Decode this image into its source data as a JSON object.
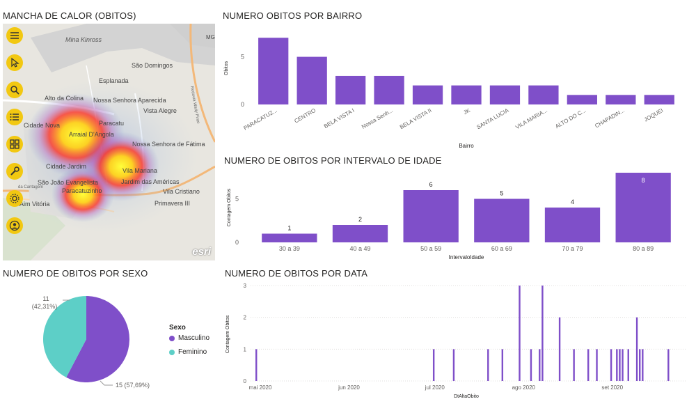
{
  "map_panel": {
    "title": "MANCHA DE CALOR (OBITOS)",
    "attribution": "esri",
    "places": [
      "Mina Kinross",
      "São Domingos",
      "Esplanada",
      "Alto da Colina",
      "Nossa Senhora Aparecida",
      "Vista Alegre",
      "Cidade Nova",
      "Paracatu",
      "Arraial D'Angola",
      "Nossa Senhora de Fátima",
      "Cidade Jardim",
      "Vila Mariana",
      "Jardim das Américas",
      "São João Evangelista",
      "Paracatuzinho",
      "Vila Cristiano",
      "Primavera III",
      "Aim Vitória",
      "MG"
    ],
    "road_labels": [
      "Rodovia Wady Pirao",
      "da Cantagem"
    ],
    "tools": [
      {
        "name": "menu-icon"
      },
      {
        "name": "pointer-icon"
      },
      {
        "name": "search-icon"
      },
      {
        "name": "list-icon"
      },
      {
        "name": "grid-icon"
      },
      {
        "name": "wrench-icon"
      },
      {
        "name": "gear-icon"
      },
      {
        "name": "user-icon"
      }
    ]
  },
  "bairro_panel": {
    "title": "NUMERO OBITOS POR BAIRRO"
  },
  "idade_panel": {
    "title": "NUMERO DE OBITOS POR INTERVALO DE IDADE"
  },
  "sexo_panel": {
    "title": "NUMERO DE OBITOS POR SEXO"
  },
  "data_panel": {
    "title": "NUMERO DE OBITOS POR DATA"
  },
  "colors": {
    "purple": "#7f4fc9",
    "teal": "#5dcfc7"
  },
  "chart_data": [
    {
      "type": "bar",
      "title": "NUMERO OBITOS POR BAIRRO",
      "categories": [
        "PARACATUZ...",
        "CENTRO",
        "BELA VISTA I",
        "Nossa Senh...",
        "BELA VISTA II",
        "JK",
        "SANTA LUCIA",
        "VILA MARIA...",
        "ALTO DO C...",
        "CHAPADIN...",
        "JOQUEI"
      ],
      "values": [
        7,
        5,
        3,
        3,
        2,
        2,
        2,
        2,
        1,
        1,
        1
      ],
      "xlabel": "Bairro",
      "ylabel": "Obitos",
      "yticks": [
        0,
        5
      ],
      "ylim": [
        0,
        7.6
      ]
    },
    {
      "type": "bar",
      "title": "NUMERO DE OBITOS POR INTERVALO DE IDADE",
      "categories": [
        "30 a 39",
        "40 a 49",
        "50 a 59",
        "60 a 69",
        "70 a 79",
        "80 a 89"
      ],
      "values": [
        1,
        2,
        6,
        5,
        4,
        8
      ],
      "xlabel": "IntervaloIdade",
      "ylabel": "Contagem Obitos",
      "yticks": [
        0,
        5
      ],
      "ylim": [
        0,
        8
      ]
    },
    {
      "type": "pie",
      "title": "NUMERO DE OBITOS POR SEXO",
      "legend_title": "Sexo",
      "slices": [
        {
          "name": "Masculino",
          "value": 15,
          "label": "15 (57,69%)"
        },
        {
          "name": "Feminino",
          "value": 11,
          "label": "11 (42,31%)"
        }
      ]
    },
    {
      "type": "bar",
      "title": "NUMERO DE OBITOS POR DATA",
      "xlabel": "DtAltaObito",
      "ylabel": "Contagem Obitos",
      "yticks": [
        0,
        1,
        2,
        3
      ],
      "ylim": [
        0,
        3
      ],
      "xticks": [
        "mai 2020",
        "jun 2020",
        "jul 2020",
        "ago 2020",
        "set 2020"
      ],
      "x_range": [
        "2020-05-01",
        "2020-09-30"
      ],
      "points": [
        {
          "date": "2020-05-03",
          "value": 1
        },
        {
          "date": "2020-07-04",
          "value": 1
        },
        {
          "date": "2020-07-11",
          "value": 1
        },
        {
          "date": "2020-07-23",
          "value": 1
        },
        {
          "date": "2020-07-28",
          "value": 1
        },
        {
          "date": "2020-08-03",
          "value": 3
        },
        {
          "date": "2020-08-07",
          "value": 1
        },
        {
          "date": "2020-08-10",
          "value": 1
        },
        {
          "date": "2020-08-11",
          "value": 3
        },
        {
          "date": "2020-08-17",
          "value": 2
        },
        {
          "date": "2020-08-22",
          "value": 1
        },
        {
          "date": "2020-08-27",
          "value": 1
        },
        {
          "date": "2020-08-30",
          "value": 1
        },
        {
          "date": "2020-09-04",
          "value": 1
        },
        {
          "date": "2020-09-06",
          "value": 1
        },
        {
          "date": "2020-09-07",
          "value": 1
        },
        {
          "date": "2020-09-08",
          "value": 1
        },
        {
          "date": "2020-09-10",
          "value": 1
        },
        {
          "date": "2020-09-13",
          "value": 2
        },
        {
          "date": "2020-09-14",
          "value": 1
        },
        {
          "date": "2020-09-15",
          "value": 1
        },
        {
          "date": "2020-09-24",
          "value": 1
        }
      ]
    }
  ]
}
